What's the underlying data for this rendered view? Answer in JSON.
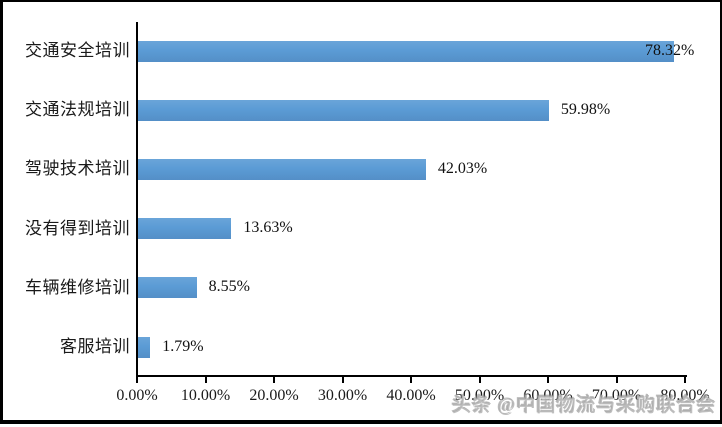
{
  "chart_data": {
    "type": "bar",
    "orientation": "horizontal",
    "title": "",
    "categories": [
      "交通安全培训",
      "交通法规培训",
      "驾驶技术培训",
      "没有得到培训",
      "车辆维修培训",
      "客服培训"
    ],
    "values": [
      78.32,
      59.98,
      42.03,
      13.63,
      8.55,
      1.79
    ],
    "value_labels": [
      "78.32%",
      "59.98%",
      "42.03%",
      "13.63%",
      "8.55%",
      "1.79%"
    ],
    "x_axis": {
      "min": 0,
      "max": 80,
      "step": 10,
      "tick_labels": [
        "0.00%",
        "10.00%",
        "20.00%",
        "30.00%",
        "40.00%",
        "50.00%",
        "60.00%",
        "70.00%",
        "80.00%"
      ]
    },
    "legend": "none",
    "grid": "off",
    "bar_color": "#5B9BD5",
    "axis_color": "#000000",
    "text_color": "#1a1a1a"
  },
  "watermark": {
    "text": "头条 @中国物流与采购联合会"
  }
}
